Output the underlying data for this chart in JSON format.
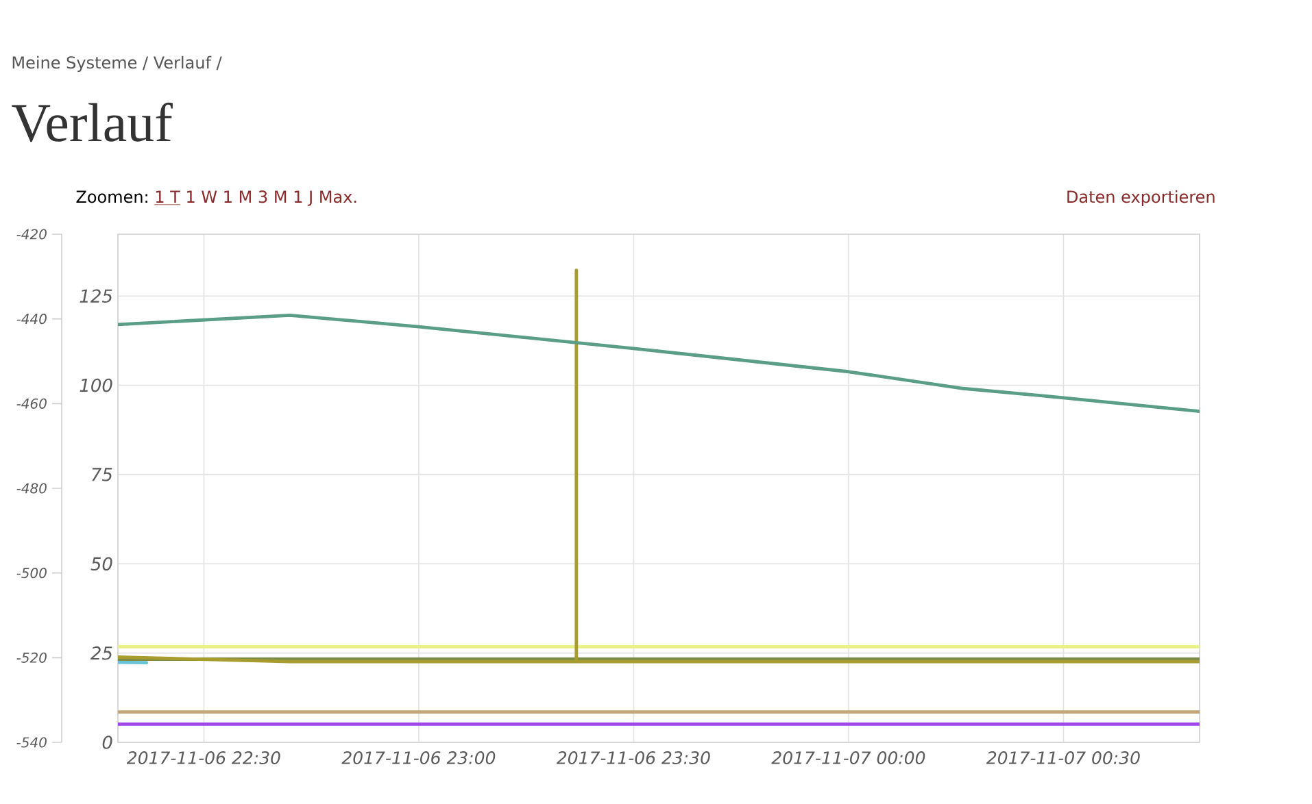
{
  "chart_data": {
    "type": "line",
    "title": "Verlauf",
    "annotations": [
      "Meine Systeme / Verlauf /",
      "Zoomen:",
      "1 T",
      "1 W",
      "1 M",
      "3 M",
      "1 J",
      "Max.",
      "Daten exportieren"
    ],
    "xlim": [
      "2017-11-06T22:18",
      "2017-11-07T00:49"
    ],
    "xticks": [
      {
        "value": "2017-11-06T22:30",
        "label": "2017-11-06 22:30"
      },
      {
        "value": "2017-11-06T23:00",
        "label": "2017-11-06 23:00"
      },
      {
        "value": "2017-11-06T23:30",
        "label": "2017-11-06 23:30"
      },
      {
        "value": "2017-11-07T00:00",
        "label": "2017-11-07 00:00"
      },
      {
        "value": "2017-11-07T00:30",
        "label": "2017-11-07 00:30"
      }
    ],
    "ylim": [
      0,
      142.3
    ],
    "yticks": [
      0,
      25,
      50,
      75,
      100,
      125
    ],
    "y2lim": [
      -540,
      -420
    ],
    "y2ticks": [
      -540,
      -520,
      -500,
      -480,
      -460,
      -440,
      -420
    ],
    "grid": true,
    "marker": "none",
    "series": [
      {
        "color": "#a146e8",
        "x": [
          "2017-11-06T22:18",
          "2017-11-07T00:49"
        ],
        "values": [
          5.1,
          5.1
        ]
      },
      {
        "color": "#c4a676",
        "x": [
          "2017-11-06T22:18",
          "2017-11-07T00:49"
        ],
        "values": [
          8.5,
          8.5
        ]
      },
      {
        "color": "#e9f28a",
        "x": [
          "2017-11-06T22:18",
          "2017-11-07T00:49"
        ],
        "values": [
          26.8,
          26.8
        ]
      },
      {
        "color": "#66c3d8",
        "x": [
          "2017-11-06T22:18",
          "2017-11-06T22:22"
        ],
        "values": [
          22.4,
          22.3
        ]
      },
      {
        "color": "#7b8c45",
        "x": [
          "2017-11-06T22:18",
          "2017-11-07T00:49"
        ],
        "values": [
          23.3,
          23.3
        ]
      },
      {
        "color": "#a99c2e",
        "x": [
          "2017-11-06T22:18",
          "2017-11-06T22:42",
          "2017-11-06T23:22",
          "2017-11-06T23:22",
          "2017-11-06T23:22",
          "2017-11-07T00:49"
        ],
        "values": [
          23.9,
          22.6,
          22.6,
          132.2,
          22.6,
          22.6
        ]
      },
      {
        "color": "#5b9e88",
        "x": [
          "2017-11-06T22:18",
          "2017-11-06T22:42",
          "2017-11-06T23:00",
          "2017-11-06T23:30",
          "2017-11-07T00:00",
          "2017-11-07T00:16",
          "2017-11-07T00:30",
          "2017-11-07T00:49"
        ],
        "values": [
          117.0,
          119.6,
          116.4,
          110.3,
          103.8,
          99.1,
          96.5,
          92.7
        ]
      }
    ]
  }
}
